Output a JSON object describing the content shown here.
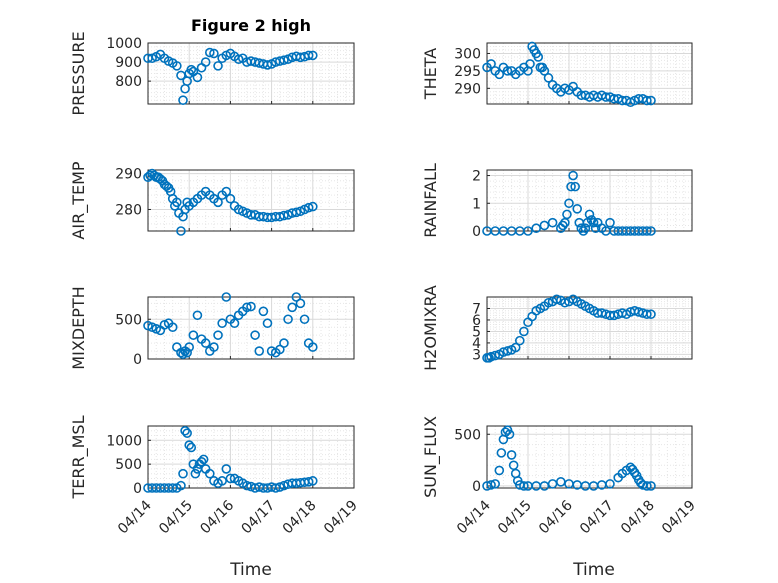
{
  "figure": {
    "title": "Figure 2 high",
    "xlabel": "Time",
    "x_tick_labels": [
      "04/14",
      "04/15",
      "04/16",
      "04/17",
      "04/18",
      "04/19"
    ],
    "marker_color": "#0072BD"
  },
  "chart_data": [
    {
      "type": "scatter",
      "ylabel": "PRESSURE",
      "xlim": [
        0,
        5
      ],
      "ylim": [
        680,
        1000
      ],
      "yticks": [
        800,
        900,
        1000
      ],
      "series": [
        {
          "x": [
            0,
            0.1,
            0.2,
            0.3,
            0.4,
            0.5,
            0.6,
            0.7,
            0.8,
            0.85,
            0.9,
            0.95,
            1.0,
            1.05,
            1.1,
            1.2,
            1.3,
            1.4,
            1.5,
            1.6,
            1.7,
            1.8,
            1.9,
            2.0,
            2.1,
            2.2,
            2.3,
            2.4,
            2.5,
            2.6,
            2.7,
            2.8,
            2.9,
            3.0,
            3.1,
            3.2,
            3.3,
            3.4,
            3.5,
            3.6,
            3.7,
            3.8,
            3.9,
            4.0
          ],
          "y": [
            920,
            920,
            928,
            940,
            920,
            905,
            895,
            880,
            830,
            700,
            760,
            800,
            840,
            860,
            850,
            820,
            870,
            900,
            950,
            945,
            880,
            920,
            935,
            945,
            930,
            915,
            920,
            900,
            905,
            900,
            895,
            890,
            885,
            890,
            900,
            905,
            910,
            915,
            925,
            930,
            925,
            928,
            935,
            935
          ]
        }
      ]
    },
    {
      "type": "scatter",
      "ylabel": "THETA",
      "xlim": [
        0,
        5
      ],
      "ylim": [
        285.5,
        303
      ],
      "yticks": [
        290,
        295,
        300
      ],
      "series": [
        {
          "x": [
            0,
            0.1,
            0.2,
            0.3,
            0.4,
            0.5,
            0.6,
            0.7,
            0.8,
            0.9,
            1.0,
            1.05,
            1.1,
            1.15,
            1.2,
            1.25,
            1.3,
            1.35,
            1.4,
            1.5,
            1.6,
            1.7,
            1.8,
            1.9,
            2.0,
            2.1,
            2.2,
            2.3,
            2.4,
            2.5,
            2.6,
            2.7,
            2.8,
            2.9,
            3.0,
            3.1,
            3.2,
            3.3,
            3.4,
            3.5,
            3.6,
            3.7,
            3.8,
            3.9,
            4.0
          ],
          "y": [
            296,
            297,
            295,
            294,
            296,
            295,
            295,
            294,
            295,
            296,
            295,
            297,
            302,
            301,
            300,
            299,
            296,
            296,
            295,
            293,
            291,
            290,
            289,
            290,
            289.5,
            290.5,
            289,
            288,
            288,
            287.5,
            288,
            287.5,
            288,
            287.5,
            287.5,
            287,
            287,
            286.5,
            286.5,
            286,
            286.5,
            287,
            287,
            286.5,
            286.5
          ]
        }
      ]
    },
    {
      "type": "scatter",
      "ylabel": "AIR_TEMP",
      "xlim": [
        0,
        5
      ],
      "ylim": [
        274,
        291
      ],
      "yticks": [
        280,
        290
      ],
      "series": [
        {
          "x": [
            0,
            0.05,
            0.1,
            0.15,
            0.2,
            0.25,
            0.3,
            0.35,
            0.4,
            0.45,
            0.5,
            0.55,
            0.6,
            0.65,
            0.7,
            0.75,
            0.8,
            0.85,
            0.9,
            0.95,
            1.0,
            1.1,
            1.2,
            1.3,
            1.4,
            1.5,
            1.6,
            1.7,
            1.8,
            1.9,
            2.0,
            2.1,
            2.2,
            2.3,
            2.4,
            2.5,
            2.6,
            2.7,
            2.8,
            2.9,
            3.0,
            3.1,
            3.2,
            3.3,
            3.4,
            3.5,
            3.6,
            3.7,
            3.8,
            3.9,
            4.0
          ],
          "y": [
            289,
            289.5,
            290,
            289.5,
            289,
            289,
            288.5,
            288,
            287,
            286.5,
            286,
            285,
            283,
            281,
            282,
            279,
            274,
            278,
            280,
            282,
            281,
            282,
            283,
            284,
            285,
            284,
            283,
            282,
            284,
            285,
            283,
            281,
            280,
            279.5,
            279,
            278.5,
            278.5,
            278,
            278,
            277.8,
            277.8,
            278,
            278,
            278.3,
            278.5,
            279,
            279.2,
            279.5,
            280,
            280.5,
            280.8
          ]
        }
      ]
    },
    {
      "type": "scatter",
      "ylabel": "RAINFALL",
      "xlim": [
        0,
        5
      ],
      "ylim": [
        0,
        2.2
      ],
      "yticks": [
        0,
        1,
        2
      ],
      "series": [
        {
          "x": [
            0,
            0.2,
            0.4,
            0.6,
            0.8,
            1.0,
            1.2,
            1.4,
            1.6,
            1.8,
            1.85,
            1.9,
            1.95,
            2.0,
            2.05,
            2.1,
            2.15,
            2.2,
            2.25,
            2.3,
            2.35,
            2.4,
            2.45,
            2.5,
            2.55,
            2.6,
            2.65,
            2.7,
            2.8,
            2.9,
            3.0,
            3.1,
            3.2,
            3.3,
            3.4,
            3.5,
            3.6,
            3.7,
            3.8,
            3.9,
            4.0
          ],
          "y": [
            0,
            0,
            0,
            0,
            0,
            0,
            0.1,
            0.2,
            0.3,
            0.1,
            0.2,
            0.3,
            0.6,
            1.0,
            1.6,
            2.0,
            1.6,
            0.8,
            0.3,
            0.1,
            0,
            0.1,
            0.3,
            0.6,
            0.4,
            0.3,
            0.1,
            0.3,
            0.1,
            0,
            0.3,
            0,
            0,
            0,
            0,
            0,
            0,
            0,
            0,
            0,
            0
          ]
        }
      ]
    },
    {
      "type": "scatter",
      "ylabel": "MIXDEPTH",
      "xlim": [
        0,
        5
      ],
      "ylim": [
        0,
        780
      ],
      "yticks": [
        0,
        500
      ],
      "series": [
        {
          "x": [
            0,
            0.1,
            0.2,
            0.3,
            0.4,
            0.5,
            0.6,
            0.7,
            0.8,
            0.85,
            0.9,
            0.95,
            1.0,
            1.1,
            1.2,
            1.3,
            1.4,
            1.5,
            1.6,
            1.7,
            1.8,
            1.9,
            2.0,
            2.1,
            2.2,
            2.3,
            2.4,
            2.5,
            2.6,
            2.7,
            2.8,
            2.9,
            3.0,
            3.1,
            3.2,
            3.3,
            3.4,
            3.5,
            3.6,
            3.7,
            3.8,
            3.9,
            4.0
          ],
          "y": [
            420,
            400,
            380,
            360,
            430,
            450,
            400,
            150,
            80,
            60,
            100,
            80,
            150,
            300,
            550,
            250,
            200,
            100,
            150,
            300,
            450,
            780,
            500,
            450,
            550,
            600,
            650,
            660,
            300,
            100,
            600,
            450,
            100,
            80,
            120,
            200,
            500,
            650,
            780,
            700,
            500,
            200,
            150
          ]
        }
      ]
    },
    {
      "type": "scatter",
      "ylabel": "H2OMIXRA",
      "xlim": [
        0,
        5
      ],
      "ylim": [
        2.6,
        8
      ],
      "yticks": [
        3,
        4,
        5,
        6,
        7
      ],
      "series": [
        {
          "x": [
            0,
            0.05,
            0.1,
            0.2,
            0.3,
            0.4,
            0.5,
            0.6,
            0.7,
            0.8,
            0.9,
            1.0,
            1.1,
            1.2,
            1.3,
            1.4,
            1.5,
            1.6,
            1.7,
            1.8,
            1.9,
            2.0,
            2.1,
            2.2,
            2.3,
            2.4,
            2.5,
            2.6,
            2.7,
            2.8,
            2.9,
            3.0,
            3.1,
            3.2,
            3.3,
            3.4,
            3.5,
            3.6,
            3.7,
            3.8,
            3.9,
            4.0
          ],
          "y": [
            2.7,
            2.7,
            2.8,
            2.9,
            3.0,
            3.2,
            3.3,
            3.4,
            3.6,
            4.2,
            5.0,
            5.8,
            6.3,
            6.8,
            7.0,
            7.2,
            7.5,
            7.6,
            7.8,
            7.7,
            7.5,
            7.6,
            7.8,
            7.6,
            7.4,
            7.2,
            7.0,
            6.8,
            6.6,
            6.6,
            6.5,
            6.4,
            6.4,
            6.5,
            6.6,
            6.5,
            6.7,
            6.8,
            6.7,
            6.6,
            6.5,
            6.5
          ]
        }
      ]
    },
    {
      "type": "scatter",
      "ylabel": "TERR_MSL",
      "xlim": [
        0,
        5
      ],
      "ylim": [
        0,
        1300
      ],
      "yticks": [
        0,
        500,
        1000
      ],
      "series": [
        {
          "x": [
            0,
            0.1,
            0.2,
            0.3,
            0.4,
            0.5,
            0.6,
            0.7,
            0.8,
            0.85,
            0.9,
            0.95,
            1.0,
            1.05,
            1.1,
            1.15,
            1.2,
            1.25,
            1.3,
            1.35,
            1.4,
            1.5,
            1.6,
            1.7,
            1.8,
            1.9,
            2.0,
            2.1,
            2.2,
            2.3,
            2.4,
            2.5,
            2.6,
            2.7,
            2.8,
            2.9,
            3.0,
            3.1,
            3.2,
            3.3,
            3.4,
            3.5,
            3.6,
            3.7,
            3.8,
            3.9,
            4.0
          ],
          "y": [
            0,
            0,
            0,
            0,
            0,
            0,
            0,
            0,
            50,
            300,
            1200,
            1150,
            900,
            850,
            500,
            300,
            400,
            500,
            550,
            600,
            400,
            300,
            150,
            100,
            150,
            400,
            200,
            200,
            150,
            100,
            50,
            30,
            0,
            20,
            0,
            0,
            20,
            0,
            20,
            50,
            80,
            100,
            100,
            110,
            120,
            130,
            150
          ]
        }
      ]
    },
    {
      "type": "scatter",
      "ylabel": "SUN_FLUX",
      "xlim": [
        0,
        5
      ],
      "ylim": [
        -20,
        580
      ],
      "yticks": [
        0,
        500
      ],
      "series": [
        {
          "x": [
            0,
            0.1,
            0.2,
            0.3,
            0.35,
            0.4,
            0.45,
            0.5,
            0.55,
            0.6,
            0.65,
            0.7,
            0.75,
            0.8,
            0.9,
            1.0,
            1.2,
            1.4,
            1.6,
            1.8,
            2.0,
            2.2,
            2.4,
            2.6,
            2.8,
            3.0,
            3.2,
            3.3,
            3.4,
            3.5,
            3.55,
            3.6,
            3.65,
            3.7,
            3.75,
            3.8,
            3.9,
            4.0
          ],
          "y": [
            0,
            10,
            20,
            150,
            320,
            450,
            520,
            540,
            500,
            300,
            200,
            120,
            50,
            10,
            0,
            0,
            0,
            0,
            20,
            40,
            20,
            10,
            0,
            0,
            10,
            20,
            80,
            120,
            150,
            180,
            160,
            130,
            100,
            60,
            30,
            10,
            0,
            0
          ]
        }
      ]
    }
  ]
}
